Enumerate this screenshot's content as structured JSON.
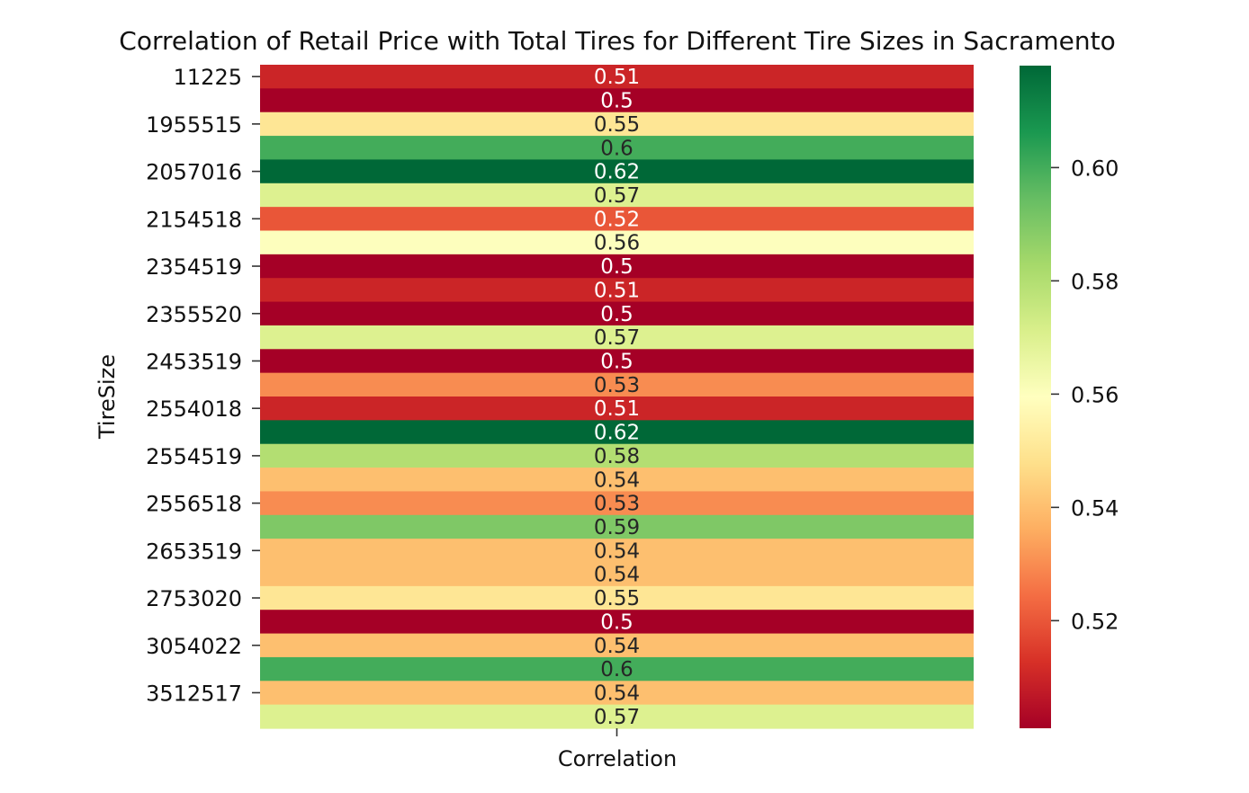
{
  "chart_data": {
    "type": "heatmap",
    "title": "Correlation of Retail Price with Total Tires for Different Tire Sizes in Sacramento",
    "xlabel": "Correlation",
    "ylabel": "TireSize",
    "columns": [
      "Correlation"
    ],
    "ytick_labels": [
      "11225",
      "1955515",
      "2057016",
      "2154518",
      "2354519",
      "2355520",
      "2453519",
      "2554018",
      "2554519",
      "2556518",
      "2653519",
      "2753020",
      "3054022",
      "3512517"
    ],
    "ytick_every": 2,
    "values": [
      0.51,
      0.5,
      0.55,
      0.6,
      0.62,
      0.57,
      0.52,
      0.56,
      0.5,
      0.51,
      0.5,
      0.57,
      0.5,
      0.53,
      0.51,
      0.62,
      0.58,
      0.54,
      0.53,
      0.59,
      0.54,
      0.54,
      0.55,
      0.5,
      0.54,
      0.6,
      0.54,
      0.57
    ],
    "cell_labels": [
      "0.51",
      "0.5",
      "0.55",
      "0.6",
      "0.62",
      "0.57",
      "0.52",
      "0.56",
      "0.5",
      "0.51",
      "0.5",
      "0.57",
      "0.5",
      "0.53",
      "0.51",
      "0.62",
      "0.58",
      "0.54",
      "0.53",
      "0.59",
      "0.54",
      "0.54",
      "0.55",
      "0.5",
      "0.54",
      "0.6",
      "0.54",
      "0.57"
    ],
    "colormap": "RdYlGn",
    "colorbar": {
      "vmin": 0.501,
      "vmax": 0.618,
      "ticks": [
        0.52,
        0.54,
        0.56,
        0.58,
        0.6
      ],
      "tick_labels": [
        "0.52",
        "0.54",
        "0.56",
        "0.58",
        "0.60"
      ]
    },
    "grid": false
  }
}
